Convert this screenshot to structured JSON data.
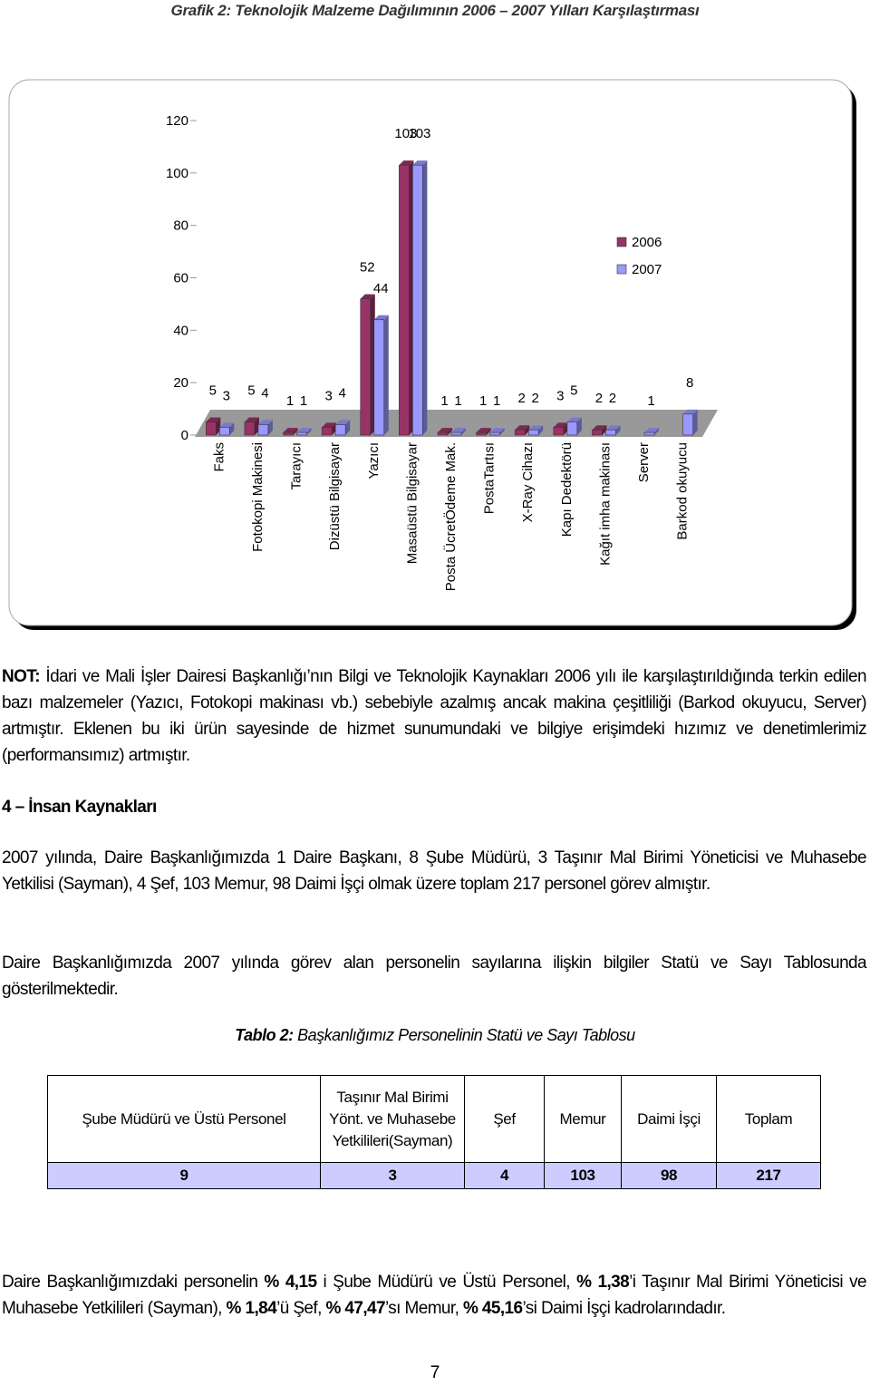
{
  "chart_caption": {
    "label": "Grafik 2:",
    "text": "Teknolojik Malzeme Dağılımının 2006 – 2007 Yılları Karşılaştırması"
  },
  "chart_data": {
    "type": "bar",
    "categories": [
      "Faks",
      "Fotokopi Makinesi",
      "Tarayıcı",
      "Dizüstü Bilgisayar",
      "Yazıcı",
      "Masaüstü Bilgisayar",
      "Posta ÜcretÖdeme Mak.",
      "PostaTartısı",
      "X-Ray Cihazı",
      "Kapı Dedektörü",
      "Kağıt imha makinası",
      "Server",
      "Barkod okuyucu"
    ],
    "series": [
      {
        "name": "2006",
        "color": "#993366",
        "values": [
          5,
          5,
          1,
          3,
          52,
          103,
          1,
          1,
          2,
          3,
          2,
          null,
          null
        ]
      },
      {
        "name": "2007",
        "color": "#9999ff",
        "values": [
          3,
          4,
          1,
          4,
          44,
          103,
          1,
          1,
          2,
          5,
          2,
          1,
          8
        ]
      }
    ],
    "ylim": [
      0,
      120
    ],
    "yticks": [
      0,
      20,
      40,
      60,
      80,
      100,
      120
    ],
    "legend": "right"
  },
  "note": {
    "label": "NOT:",
    "text": "İdari ve Mali İşler Dairesi Başkanlığı’nın Bilgi ve Teknolojik Kaynakları 2006 yılı ile karşılaştırıldığında terkin edilen bazı malzemeler (Yazıcı, Fotokopi makinası vb.) sebebiyle azalmış ancak makina çeşitliliği (Barkod okuyucu, Server) artmıştır. Eklenen bu iki ürün sayesinde de hizmet sunumundaki ve bilgiye erişimdeki hızımız ve denetimlerimiz (performansımız) artmıştır."
  },
  "section": {
    "heading": "4 – İnsan Kaynakları",
    "paragraphs": [
      "2007 yılında, Daire Başkanlığımızda 1 Daire Başkanı, 8 Şube Müdürü, 3 Taşınır Mal Birimi Yöneticisi ve Muhasebe Yetkilisi (Sayman), 4 Şef, 103 Memur, 98 Daimi İşçi olmak üzere toplam 217 personel görev almıştır.",
      "Daire Başkanlığımızda 2007 yılında görev alan personelin sayılarına ilişkin bilgiler Statü ve Sayı Tablosunda gösterilmektedir."
    ]
  },
  "table_caption": {
    "label": "Tablo 2:",
    "text": "Başkanlığımız Personelinin Statü ve Sayı Tablosu"
  },
  "table": {
    "header": [
      "Şube Müdürü ve Üstü Personel",
      "Taşınır Mal Birimi Yönt. ve Muhasebe Yetkilileri(Sayman)",
      "Şef",
      "Memur",
      "Daimi İşçi",
      "Toplam"
    ],
    "rows": [
      [
        9,
        3,
        4,
        103,
        98,
        217
      ]
    ]
  },
  "summary": [
    {
      "text": "Daire Başkanlığımızdaki personelin ",
      "bold": false
    },
    {
      "text": "% 4,15",
      "bold": true
    },
    {
      "text": " i Şube Müdürü ve Üstü Personel, ",
      "bold": false
    },
    {
      "text": "% 1,38",
      "bold": true
    },
    {
      "text": "’i Taşınır Mal Birimi Yöneticisi ve Muhasebe Yetkilileri (Sayman), ",
      "bold": false
    },
    {
      "text": "% 1,84",
      "bold": true
    },
    {
      "text": "’ü Şef, ",
      "bold": false
    },
    {
      "text": "% 47,47",
      "bold": true
    },
    {
      "text": "’sı Memur, ",
      "bold": false
    },
    {
      "text": "% 45,16",
      "bold": true
    },
    {
      "text": "’si Daimi İşçi kadrolarındadır.",
      "bold": false
    }
  ],
  "page_number": 7
}
